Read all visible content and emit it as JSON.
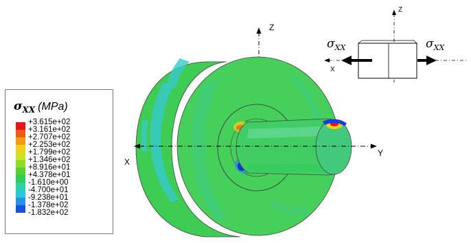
{
  "legend": {
    "symbol": "σ",
    "subscript": "XX",
    "unit": "(MPa)",
    "levels": [
      {
        "label": "+3.615e+02",
        "color": "#e8141a"
      },
      {
        "label": "+3.161e+02",
        "color": "#ef5b12"
      },
      {
        "label": "+2.707e+02",
        "color": "#f49a10"
      },
      {
        "label": "+2.253e+02",
        "color": "#f2d11a"
      },
      {
        "label": "+1.799e+02",
        "color": "#cce223"
      },
      {
        "label": "+1.346e+02",
        "color": "#8fdd2a"
      },
      {
        "label": "+8.916e+01",
        "color": "#52d22f"
      },
      {
        "label": "+4.378e+01",
        "color": "#2fcc5a"
      },
      {
        "label": "-1.610e+00",
        "color": "#2bd4a6"
      },
      {
        "label": "-4.700e+01",
        "color": "#27c7de"
      },
      {
        "label": "-9.238e+01",
        "color": "#2493e6"
      },
      {
        "label": "-1.378e+02",
        "color": "#1a50e0"
      },
      {
        "label": "-1.832e+02",
        "color": "#1414c8"
      }
    ]
  },
  "axes": {
    "z": "Z",
    "x": "X",
    "y": "Y"
  },
  "inset": {
    "z": "Z",
    "x": "X",
    "left_stress": {
      "symbol": "σ",
      "subscript": "XX"
    },
    "right_stress": {
      "symbol": "σ",
      "subscript": "XX"
    }
  },
  "colors": {
    "wheel_green": "#3fcc55",
    "wheel_face": "#47cf5c",
    "wheel_side": "#36c24e",
    "cyan_band": "#38c9c8",
    "shaft": "#41cd64",
    "hot_red": "#e8141a",
    "cold_blue": "#1a3ee0"
  }
}
